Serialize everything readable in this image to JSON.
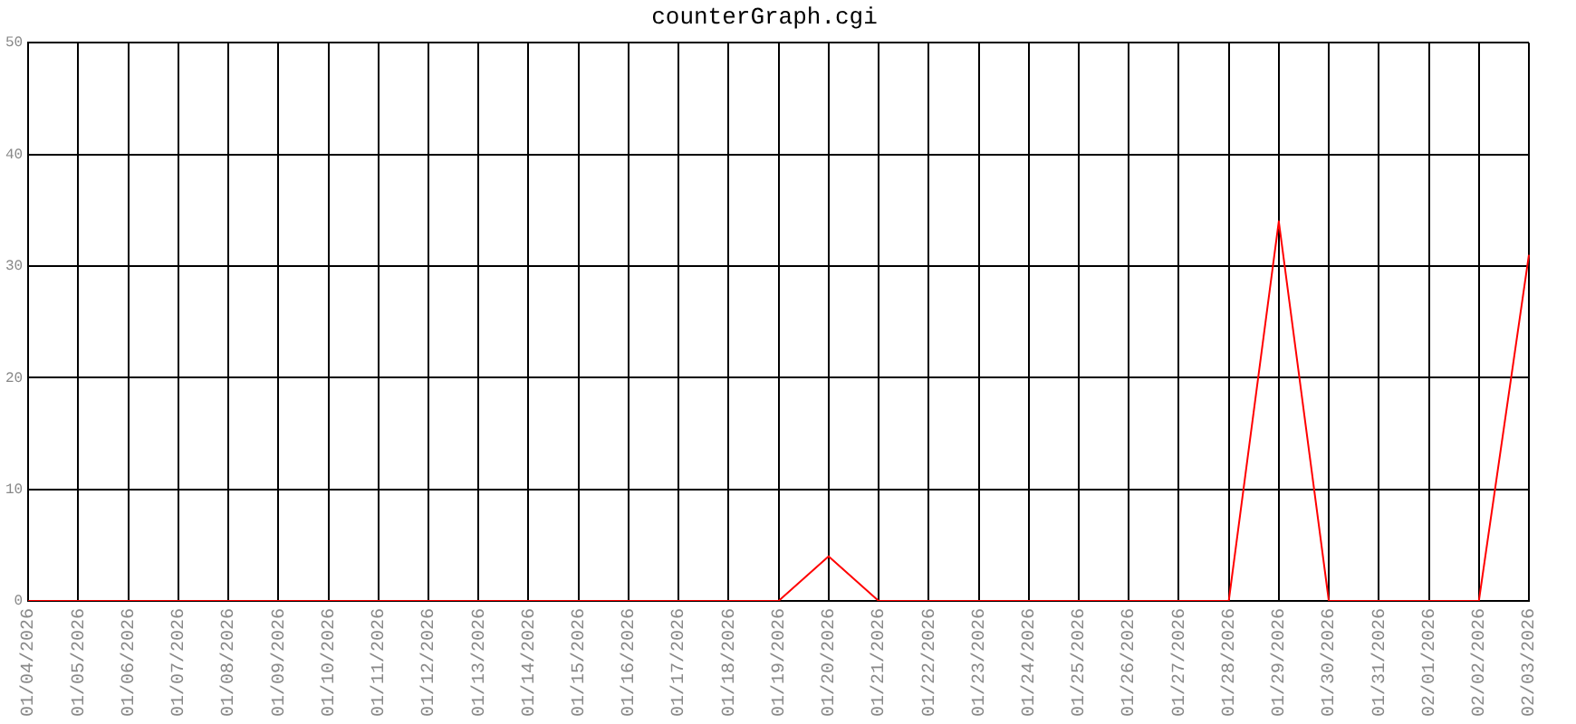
{
  "chart_data": {
    "type": "line",
    "title": "counterGraph.cgi",
    "categories": [
      "01/04/2026",
      "01/05/2026",
      "01/06/2026",
      "01/07/2026",
      "01/08/2026",
      "01/09/2026",
      "01/10/2026",
      "01/11/2026",
      "01/12/2026",
      "01/13/2026",
      "01/14/2026",
      "01/15/2026",
      "01/16/2026",
      "01/17/2026",
      "01/18/2026",
      "01/19/2026",
      "01/20/2026",
      "01/21/2026",
      "01/22/2026",
      "01/23/2026",
      "01/24/2026",
      "01/25/2026",
      "01/26/2026",
      "01/27/2026",
      "01/28/2026",
      "01/29/2026",
      "01/30/2026",
      "01/31/2026",
      "02/01/2026",
      "02/02/2026",
      "02/03/2026"
    ],
    "series": [
      {
        "color": "#ff0000",
        "values": [
          0,
          0,
          0,
          0,
          0,
          0,
          0,
          0,
          0,
          0,
          0,
          0,
          0,
          0,
          0,
          0,
          4,
          0,
          0,
          0,
          0,
          0,
          0,
          0,
          0,
          34,
          0,
          0,
          0,
          0,
          31
        ]
      }
    ],
    "ylim": [
      0,
      50
    ],
    "yticks": [
      0,
      10,
      20,
      30,
      40,
      50
    ],
    "grid": true,
    "legend": false,
    "marker": "none",
    "line_style": "solid"
  }
}
